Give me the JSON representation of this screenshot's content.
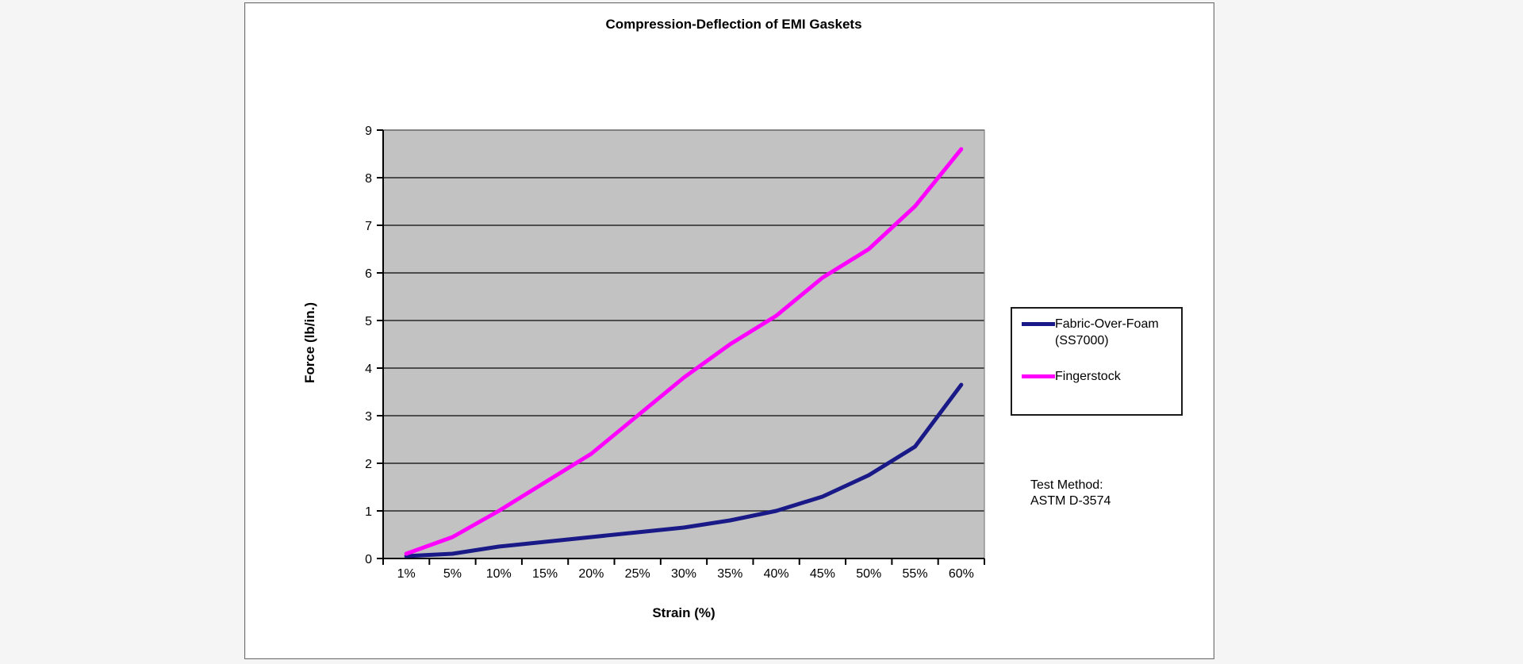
{
  "chart": {
    "legend_entries": [
      {
        "line1": "Fabric-Over-Foam",
        "line2": "(SS7000)"
      },
      {
        "line1": "Fingerstock",
        "line2": ""
      }
    ],
    "note": {
      "line1": "Test Method:",
      "line2": "ASTM D-3574"
    },
    "plot_bg": "#c2c2c2",
    "grid_color": "#262626",
    "axis_color": "#000000",
    "plot_border_color": "#808080"
  },
  "chart_data": {
    "type": "line",
    "title": "Compression-Deflection of EMI Gaskets",
    "xlabel": "Strain (%)",
    "ylabel": "Force (lb/in.)",
    "categories": [
      "1%",
      "5%",
      "10%",
      "15%",
      "20%",
      "25%",
      "30%",
      "35%",
      "40%",
      "45%",
      "50%",
      "55%",
      "60%"
    ],
    "series": [
      {
        "name": "Fabric-Over-Foam (SS7000)",
        "color": "#191987",
        "values": [
          0.05,
          0.1,
          0.25,
          0.35,
          0.45,
          0.55,
          0.65,
          0.8,
          1.0,
          1.3,
          1.75,
          2.35,
          3.65
        ]
      },
      {
        "name": "Fingerstock",
        "color": "#ff00ff",
        "values": [
          0.1,
          0.45,
          1.0,
          1.6,
          2.2,
          3.0,
          3.8,
          4.5,
          5.1,
          5.9,
          6.5,
          7.4,
          8.6
        ]
      }
    ],
    "ylim": [
      0,
      9
    ],
    "yticks": [
      0,
      1,
      2,
      3,
      4,
      5,
      6,
      7,
      8,
      9
    ],
    "grid": "horizontal",
    "legend_position": "right"
  }
}
